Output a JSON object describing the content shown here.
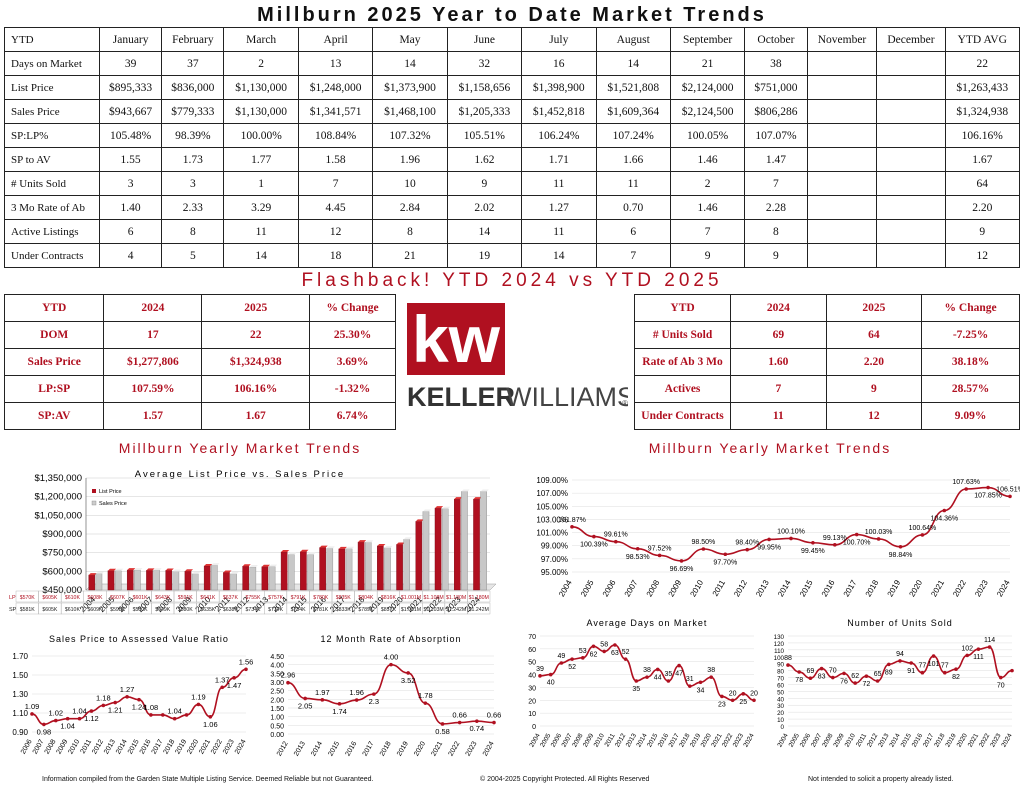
{
  "title": "Millburn 2025 Year to Date Market Trends",
  "main_table": {
    "headers": [
      "YTD",
      "January",
      "February",
      "March",
      "April",
      "May",
      "June",
      "July",
      "August",
      "September",
      "October",
      "November",
      "December",
      "YTD AVG"
    ],
    "rows": [
      [
        "Days on Market",
        "39",
        "37",
        "2",
        "13",
        "14",
        "32",
        "16",
        "14",
        "21",
        "38",
        "",
        "",
        "22"
      ],
      [
        "List Price",
        "$895,333",
        "$836,000",
        "$1,130,000",
        "$1,248,000",
        "$1,373,900",
        "$1,158,656",
        "$1,398,900",
        "$1,521,808",
        "$2,124,000",
        "$751,000",
        "",
        "",
        "$1,263,433"
      ],
      [
        "Sales Price",
        "$943,667",
        "$779,333",
        "$1,130,000",
        "$1,341,571",
        "$1,468,100",
        "$1,205,333",
        "$1,452,818",
        "$1,609,364",
        "$2,124,500",
        "$806,286",
        "",
        "",
        "$1,324,938"
      ],
      [
        "SP:LP%",
        "105.48%",
        "98.39%",
        "100.00%",
        "108.84%",
        "107.32%",
        "105.51%",
        "106.24%",
        "107.24%",
        "100.05%",
        "107.07%",
        "",
        "",
        "106.16%"
      ],
      [
        "SP to AV",
        "1.55",
        "1.73",
        "1.77",
        "1.58",
        "1.96",
        "1.62",
        "1.71",
        "1.66",
        "1.46",
        "1.47",
        "",
        "",
        "1.67"
      ],
      [
        "# Units Sold",
        "3",
        "3",
        "1",
        "7",
        "10",
        "9",
        "11",
        "11",
        "2",
        "7",
        "",
        "",
        "64"
      ],
      [
        "3 Mo Rate of Ab",
        "1.40",
        "2.33",
        "3.29",
        "4.45",
        "2.84",
        "2.02",
        "1.27",
        "0.70",
        "1.46",
        "2.28",
        "",
        "",
        "2.20"
      ],
      [
        "Active Listings",
        "6",
        "8",
        "11",
        "12",
        "8",
        "14",
        "11",
        "6",
        "7",
        "8",
        "",
        "",
        "9"
      ],
      [
        "Under Contracts",
        "4",
        "5",
        "14",
        "18",
        "21",
        "19",
        "14",
        "7",
        "9",
        "9",
        "",
        "",
        "12"
      ]
    ]
  },
  "flashback_title": "Flashback!  YTD 2024 vs YTD 2025",
  "compare_left": {
    "headers": [
      "YTD",
      "2024",
      "2025",
      "% Change"
    ],
    "rows": [
      [
        "DOM",
        "17",
        "22",
        "25.30%"
      ],
      [
        "Sales Price",
        "$1,277,806",
        "$1,324,938",
        "3.69%"
      ],
      [
        "LP:SP",
        "107.59%",
        "106.16%",
        "-1.32%"
      ],
      [
        "SP:AV",
        "1.57",
        "1.67",
        "6.74%"
      ]
    ]
  },
  "compare_right": {
    "headers": [
      "YTD",
      "2024",
      "2025",
      "% Change"
    ],
    "rows": [
      [
        "# Units Sold",
        "69",
        "64",
        "-7.25%"
      ],
      [
        "Rate of Ab 3 Mo",
        "1.60",
        "2.20",
        "38.18%"
      ],
      [
        "Actives",
        "7",
        "9",
        "28.57%"
      ],
      [
        "Under Contracts",
        "11",
        "12",
        "9.09%"
      ]
    ]
  },
  "logo": {
    "kw": "kw",
    "brand_left": "KELLER",
    "brand_right": "WILLIAMS",
    "mark": "®"
  },
  "section_titles": {
    "left": "Millburn Yearly Market Trends",
    "right": "Millburn Yearly Market Trends"
  },
  "footer": {
    "left": "Information compiled from the Garden State Multiple Listing Service.  Deemed Reliable but not Guaranteed.",
    "center": "© 2004-2025 Copyright Protected.  All Rights Reserved",
    "right": "Not intended to solicit a property already listed."
  },
  "colors": {
    "accent": "#b01020",
    "gray_bar": "#c8c8c8"
  },
  "chart_data": [
    {
      "id": "lp-sp",
      "type": "bar",
      "title": "Average List Price vs. Sales Price",
      "categories": [
        "2004",
        "2005",
        "2006",
        "2007",
        "2008",
        "2009",
        "2010",
        "2011",
        "2012",
        "2013",
        "2014",
        "2015",
        "2016",
        "2017",
        "2018",
        "2019",
        "2020",
        "2021",
        "2022",
        "2023",
        "2024"
      ],
      "series": [
        {
          "name": "List Price",
          "values": [
            570000,
            605000,
            610000,
            608000,
            607000,
            601000,
            643000,
            591000,
            641000,
            637000,
            755000,
            757000,
            791000,
            780000,
            835000,
            804000,
            816000,
            1001000,
            1108000,
            1180000,
            1180000
          ]
        },
        {
          "name": "Sales Price",
          "values": [
            581000,
            605000,
            610000,
            609000,
            598000,
            580000,
            649000,
            580000,
            635000,
            638000,
            734000,
            734000,
            784000,
            781000,
            833000,
            789000,
            857000,
            1081000,
            1103000,
            1242000,
            1242000
          ]
        }
      ],
      "yticks": [
        "$450,000",
        "$600,000",
        "$750,000",
        "$900,000",
        "$1,050,000",
        "$1,200,000",
        "$1,350,000"
      ],
      "ylim": [
        450000,
        1350000
      ],
      "table_rows": [
        {
          "label": "LP",
          "cells": [
            "$570K",
            "$605K",
            "$610K",
            "$608K",
            "$607K",
            "$601K",
            "$643K",
            "$591K",
            "$641K",
            "$637K",
            "$755K",
            "$757K",
            "$791K",
            "$780K",
            "$835K",
            "$804K",
            "$816K",
            "$1.001M",
            "$1.108M",
            "$1.180M",
            "$1.180M"
          ]
        },
        {
          "label": "SP",
          "cells": [
            "$581K",
            "$605K",
            "$610K",
            "$609K",
            "$598K",
            "$580K",
            "$649K",
            "$580K",
            "$635K",
            "$638K",
            "$734K",
            "$734K",
            "$784K",
            "$781K",
            "$833K",
            "$789K",
            "$857K",
            "$1.081M",
            "$1.103M",
            "$1.242M",
            "$1.242M"
          ]
        }
      ]
    },
    {
      "id": "splp",
      "type": "line",
      "x": [
        "2004",
        "2005",
        "2006",
        "2007",
        "2008",
        "2009",
        "2010",
        "2011",
        "2012",
        "2013",
        "2014",
        "2015",
        "2016",
        "2017",
        "2018",
        "2019",
        "2020",
        "2021",
        "2022",
        "2023",
        "2024"
      ],
      "values": [
        101.87,
        100.39,
        99.61,
        98.53,
        97.52,
        96.69,
        98.5,
        97.7,
        98.4,
        99.95,
        100.1,
        99.45,
        99.13,
        100.7,
        100.03,
        98.84,
        100.64,
        104.36,
        107.63,
        107.85,
        106.51
      ],
      "labels": [
        "101.87%",
        "100.39%",
        "99.61%",
        "98.53%",
        "97.52%",
        "96.69%",
        "98.50%",
        "97.70%",
        "98.40%",
        "99.95%",
        "100.10%",
        "99.45%",
        "99.13%",
        "100.70%",
        "100.03%",
        "98.84%",
        "100.64%",
        "104.36%",
        "107.63%",
        "107.85%",
        "106.51%"
      ],
      "yticks": [
        "95.00%",
        "97.00%",
        "99.00%",
        "101.00%",
        "103.00%",
        "105.00%",
        "107.00%",
        "109.00%"
      ],
      "ylim": [
        95,
        109
      ]
    },
    {
      "id": "spav",
      "type": "line",
      "title": "Sales Price to Assessed Value Ratio",
      "x": [
        "2006",
        "2007",
        "2008",
        "2009",
        "2010",
        "2011",
        "2012",
        "2013",
        "2014",
        "2015",
        "2016",
        "2017",
        "2018",
        "2019",
        "2020",
        "2021",
        "2022",
        "2023",
        "2024"
      ],
      "values": [
        1.09,
        0.98,
        1.02,
        1.04,
        1.04,
        1.12,
        1.18,
        1.21,
        1.27,
        1.24,
        1.08,
        1.08,
        1.04,
        1.08,
        1.19,
        1.06,
        1.37,
        1.47,
        1.56
      ],
      "labels": [
        "1.09",
        "0.98",
        "1.02",
        "1.04",
        "1.04",
        "1.12",
        "1.18",
        "1.21",
        "1.27",
        "1.24",
        "1.08",
        "",
        "1.04",
        "",
        "1.19",
        "1.06",
        "1.37",
        "1.47",
        "1.56"
      ],
      "yticks": [
        "0.90",
        "1.10",
        "1.30",
        "1.50",
        "1.70"
      ],
      "ylim": [
        0.9,
        1.7
      ]
    },
    {
      "id": "absorb",
      "type": "line",
      "title": "12 Month Rate of Absorption",
      "x": [
        "2012",
        "2013",
        "2014",
        "2015",
        "2016",
        "2017",
        "2018",
        "2019",
        "2020",
        "2021",
        "2022",
        "2023",
        "2024"
      ],
      "values": [
        2.96,
        2.05,
        1.97,
        1.74,
        1.96,
        2.3,
        4.0,
        3.52,
        1.78,
        0.58,
        0.66,
        0.74,
        0.66
      ],
      "labels": [
        "2.96",
        "2.05",
        "1.97",
        "1.74",
        "1.96",
        "2.3",
        "4.00",
        "3.52",
        "1.78",
        "0.58",
        "0.66",
        "0.74",
        "0.66"
      ],
      "yticks": [
        "0.00",
        "0.50",
        "1.00",
        "1.50",
        "2.00",
        "2.50",
        "3.00",
        "3.50",
        "4.00",
        "4.50"
      ],
      "ylim": [
        0,
        4.5
      ]
    },
    {
      "id": "dom",
      "type": "line",
      "title": "Average Days on Market",
      "x": [
        "2004",
        "2005",
        "2006",
        "2007",
        "2008",
        "2009",
        "2010",
        "2011",
        "2012",
        "2013",
        "2014",
        "2015",
        "2016",
        "2017",
        "2018",
        "2019",
        "2020",
        "2021",
        "2022",
        "2023",
        "2024"
      ],
      "values": [
        39,
        40,
        49,
        52,
        53,
        62,
        58,
        63,
        52,
        35,
        38,
        44,
        35,
        47,
        31,
        34,
        38,
        23,
        20,
        25,
        20
      ],
      "labels": [
        "39",
        "40",
        "49",
        "52",
        "53",
        "62",
        "58",
        "63",
        "52",
        "35",
        "38",
        "44",
        "35",
        "47",
        "31",
        "34",
        "38",
        "23",
        "20",
        "25",
        "20"
      ],
      "yticks": [
        "0",
        "10",
        "20",
        "30",
        "40",
        "50",
        "60",
        "70"
      ],
      "ylim": [
        0,
        70
      ]
    },
    {
      "id": "units",
      "type": "line",
      "title": "Number of Units Sold",
      "x": [
        "2004",
        "2005",
        "2006",
        "2007",
        "2008",
        "2009",
        "2010",
        "2011",
        "2012",
        "2013",
        "2014",
        "2015",
        "2016",
        "2017",
        "2018",
        "2019",
        "2020",
        "2021",
        "2022",
        "2023",
        "2024"
      ],
      "values": [
        88,
        78,
        69,
        83,
        70,
        76,
        62,
        72,
        65,
        89,
        94,
        91,
        77,
        101,
        77,
        82,
        102,
        111,
        114,
        70,
        80
      ],
      "labels": [
        "88",
        "78",
        "69",
        "83",
        "70",
        "76",
        "62",
        "72",
        "65",
        "89",
        "94",
        "91",
        "77",
        "101",
        "77",
        "82",
        "102",
        "111",
        "114",
        "70",
        ""
      ],
      "yticks": [
        "0",
        "10",
        "20",
        "30",
        "40",
        "50",
        "60",
        "70",
        "80",
        "90",
        "100",
        "110",
        "120",
        "130"
      ],
      "ylim": [
        0,
        130
      ]
    }
  ]
}
